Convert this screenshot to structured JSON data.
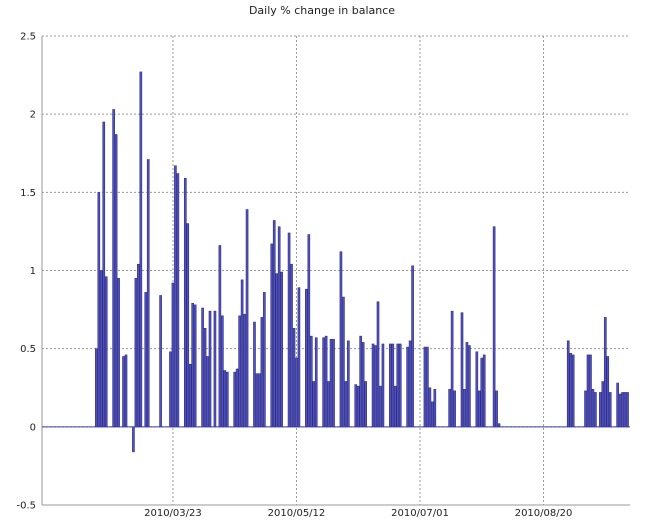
{
  "chart_data": {
    "type": "bar",
    "title": "Daily % change in balance",
    "xlabel": "",
    "ylabel": "",
    "ylim": [
      -0.5,
      2.5
    ],
    "yticks": [
      "2.5",
      "2",
      "1.5",
      "1",
      "0.5",
      "0",
      "-0.5"
    ],
    "xlim": [
      "2010-01-29",
      "2010-09-24"
    ],
    "xticks": [
      "2010/03/23",
      "2010/05/12",
      "2010/07/01",
      "2010/08/20"
    ],
    "grid": true,
    "colors": {
      "bar": "#5252b8",
      "bar_edge": "#2e2e8a",
      "grid": "#9a9a9a"
    },
    "series": [
      {
        "x": [
          "2010-02-20",
          "2010-02-21",
          "2010-02-22",
          "2010-02-23",
          "2010-02-24",
          "2010-02-27",
          "2010-02-28",
          "2010-03-01",
          "2010-03-03",
          "2010-03-04",
          "2010-03-07",
          "2010-03-08",
          "2010-03-09",
          "2010-03-10",
          "2010-03-12",
          "2010-03-13",
          "2010-03-18",
          "2010-03-22",
          "2010-03-23",
          "2010-03-24",
          "2010-03-25",
          "2010-03-28",
          "2010-03-29",
          "2010-03-30",
          "2010-03-31",
          "2010-04-01",
          "2010-04-04",
          "2010-04-05",
          "2010-04-06",
          "2010-04-07",
          "2010-04-09",
          "2010-04-11",
          "2010-04-12",
          "2010-04-13",
          "2010-04-14",
          "2010-04-17",
          "2010-04-18",
          "2010-04-19",
          "2010-04-20",
          "2010-04-21",
          "2010-04-22",
          "2010-04-25",
          "2010-04-26",
          "2010-04-27",
          "2010-04-28",
          "2010-04-29",
          "2010-05-02",
          "2010-05-03",
          "2010-05-04",
          "2010-05-05",
          "2010-05-06",
          "2010-05-09",
          "2010-05-10",
          "2010-05-11",
          "2010-05-12",
          "2010-05-13",
          "2010-05-16",
          "2010-05-17",
          "2010-05-18",
          "2010-05-19",
          "2010-05-20",
          "2010-05-23",
          "2010-05-24",
          "2010-05-25",
          "2010-05-26",
          "2010-05-27",
          "2010-05-30",
          "2010-05-31",
          "2010-06-01",
          "2010-06-02",
          "2010-06-05",
          "2010-06-06",
          "2010-06-07",
          "2010-06-08",
          "2010-06-09",
          "2010-06-12",
          "2010-06-13",
          "2010-06-14",
          "2010-06-15",
          "2010-06-16",
          "2010-06-19",
          "2010-06-20",
          "2010-06-21",
          "2010-06-22",
          "2010-06-23",
          "2010-06-26",
          "2010-06-27",
          "2010-06-28",
          "2010-07-03",
          "2010-07-04",
          "2010-07-05",
          "2010-07-06",
          "2010-07-07",
          "2010-07-13",
          "2010-07-14",
          "2010-07-15",
          "2010-07-18",
          "2010-07-19",
          "2010-07-20",
          "2010-07-21",
          "2010-07-24",
          "2010-07-25",
          "2010-07-26",
          "2010-07-27",
          "2010-07-31",
          "2010-08-01",
          "2010-08-02",
          "2010-08-30",
          "2010-08-31",
          "2010-09-01",
          "2010-09-06",
          "2010-09-07",
          "2010-09-08",
          "2010-09-09",
          "2010-09-10",
          "2010-09-12",
          "2010-09-13",
          "2010-09-14",
          "2010-09-15",
          "2010-09-16",
          "2010-09-19",
          "2010-09-20",
          "2010-09-21",
          "2010-09-22",
          "2010-09-23"
        ],
        "values": [
          0.5,
          1.5,
          1.0,
          1.95,
          0.96,
          2.03,
          1.87,
          0.95,
          0.45,
          0.46,
          -0.16,
          0.95,
          1.04,
          2.27,
          0.86,
          1.71,
          0.84,
          0.48,
          0.92,
          1.67,
          1.62,
          1.59,
          1.3,
          0.4,
          0.79,
          0.78,
          0.76,
          0.63,
          0.45,
          0.74,
          0.74,
          1.16,
          0.71,
          0.36,
          0.35,
          0.35,
          0.37,
          0.71,
          0.94,
          0.72,
          1.39,
          0.67,
          0.34,
          0.34,
          0.7,
          0.86,
          1.17,
          1.32,
          0.98,
          1.28,
          0.99,
          1.24,
          1.04,
          0.63,
          0.44,
          0.89,
          0.88,
          1.23,
          0.58,
          0.29,
          0.57,
          0.57,
          0.58,
          0.29,
          0.56,
          0.56,
          1.12,
          0.83,
          0.29,
          0.55,
          0.27,
          0.26,
          0.58,
          0.54,
          0.29,
          0.53,
          0.52,
          0.8,
          0.26,
          0.53,
          0.53,
          0.53,
          0.26,
          0.53,
          0.53,
          0.51,
          0.55,
          1.03,
          0.51,
          0.51,
          0.25,
          0.16,
          0.24,
          0.24,
          0.74,
          0.23,
          0.73,
          0.24,
          0.54,
          0.52,
          0.48,
          0.23,
          0.44,
          0.46,
          1.28,
          0.23,
          0.02,
          0.55,
          0.47,
          0.46,
          0.23,
          0.46,
          0.46,
          0.24,
          0.22,
          0.22,
          0.29,
          0.7,
          0.45,
          0.22,
          0.28,
          0.21,
          0.22,
          0.22,
          0.22
        ]
      }
    ]
  }
}
